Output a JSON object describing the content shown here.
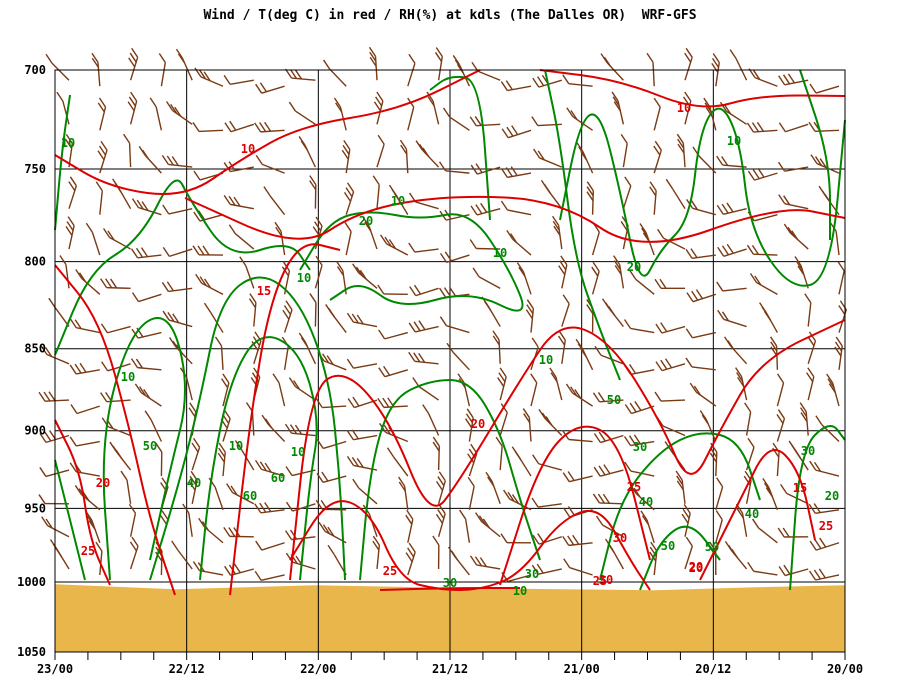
{
  "title": "Wind / T(deg C) in red / RH(%) at kdls (The Dalles OR)  WRF-GFS",
  "colors": {
    "temperature": "#dd0000",
    "rh": "#008800",
    "wind": "#7a3a14",
    "terrain": "#e8b64a",
    "grid": "#000000"
  },
  "chart_data": {
    "type": "line",
    "title": "Wind / T(deg C) in red / RH(%) at kdls (The Dalles OR)  WRF-GFS",
    "xlabel": "",
    "ylabel": "",
    "y_axis": {
      "range": [
        700,
        1050
      ],
      "scale": "log-pressure",
      "ticks": [
        "700",
        "750",
        "800",
        "850",
        "900",
        "950",
        "1000",
        "1050"
      ]
    },
    "x_axis": {
      "range": [
        "23/00",
        "20/00"
      ],
      "direction": "time decreasing to the right",
      "ticks": [
        "23/00",
        "22/12",
        "22/00",
        "21/12",
        "21/00",
        "20/12",
        "20/00"
      ]
    },
    "grid": true,
    "surface_pressure_hpa": 1003,
    "series": [
      {
        "name": "T(deg C)",
        "color": "red",
        "contour_labels": [
          "10",
          "10",
          "15",
          "20",
          "20",
          "25",
          "25",
          "25",
          "30",
          "25",
          "15",
          "20",
          "25",
          "30",
          "20"
        ]
      },
      {
        "name": "RH(%)",
        "color": "green",
        "contour_labels": [
          "10",
          "10",
          "10",
          "20",
          "10",
          "20",
          "10",
          "10",
          "10",
          "50",
          "10",
          "10",
          "40",
          "60",
          "60",
          "50",
          "30",
          "30",
          "30",
          "40",
          "50",
          "50",
          "40",
          "30",
          "20",
          "10"
        ]
      }
    ]
  }
}
